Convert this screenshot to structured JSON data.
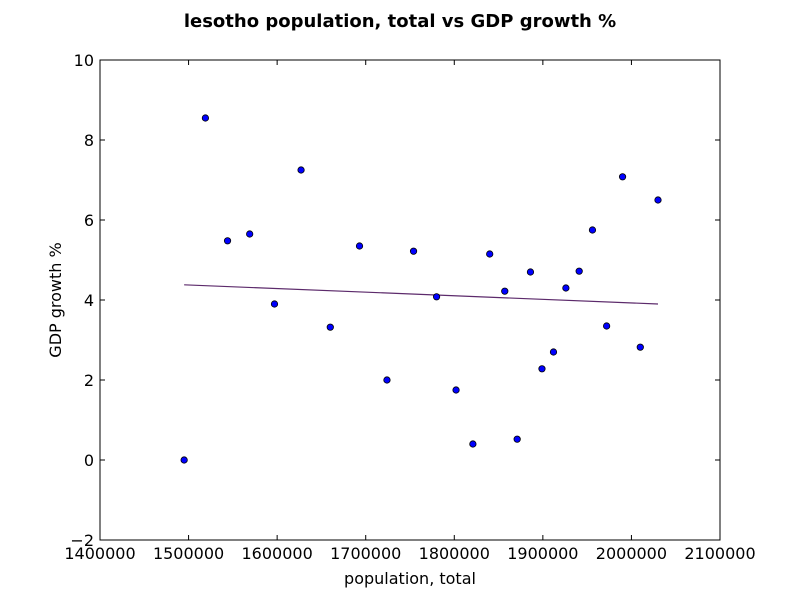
{
  "chart_data": {
    "type": "scatter",
    "title": "lesotho population, total vs GDP growth %",
    "xlabel": "population, total",
    "ylabel": "GDP growth %",
    "xlim": [
      1400000,
      2100000
    ],
    "ylim": [
      -2,
      10
    ],
    "xticks": [
      1400000,
      1500000,
      1600000,
      1700000,
      1800000,
      1900000,
      2000000,
      2100000
    ],
    "yticks": [
      -2,
      0,
      2,
      4,
      6,
      8,
      10
    ],
    "xtick_labels": [
      "1400000",
      "1500000",
      "1600000",
      "1700000",
      "1800000",
      "1900000",
      "2000000",
      "2100000"
    ],
    "ytick_labels": [
      "−2",
      "0",
      "2",
      "4",
      "6",
      "8",
      "10"
    ],
    "grid": false,
    "points": [
      {
        "x": 1495000,
        "y": 0.0
      },
      {
        "x": 1519000,
        "y": 8.55
      },
      {
        "x": 1544000,
        "y": 5.48
      },
      {
        "x": 1569000,
        "y": 5.65
      },
      {
        "x": 1597000,
        "y": 3.9
      },
      {
        "x": 1627000,
        "y": 7.25
      },
      {
        "x": 1660000,
        "y": 3.32
      },
      {
        "x": 1693000,
        "y": 5.35
      },
      {
        "x": 1724000,
        "y": 2.0
      },
      {
        "x": 1754000,
        "y": 5.22
      },
      {
        "x": 1780000,
        "y": 4.08
      },
      {
        "x": 1802000,
        "y": 1.75
      },
      {
        "x": 1821000,
        "y": 0.4
      },
      {
        "x": 1840000,
        "y": 5.15
      },
      {
        "x": 1857000,
        "y": 4.22
      },
      {
        "x": 1871000,
        "y": 0.52
      },
      {
        "x": 1886000,
        "y": 4.7
      },
      {
        "x": 1899000,
        "y": 2.28
      },
      {
        "x": 1912000,
        "y": 2.7
      },
      {
        "x": 1926000,
        "y": 4.3
      },
      {
        "x": 1941000,
        "y": 4.72
      },
      {
        "x": 1956000,
        "y": 5.75
      },
      {
        "x": 1972000,
        "y": 3.35
      },
      {
        "x": 1990000,
        "y": 7.08
      },
      {
        "x": 2010000,
        "y": 2.82
      },
      {
        "x": 2030000,
        "y": 6.5
      }
    ],
    "trendline": {
      "x": [
        1495000,
        2030000
      ],
      "y": [
        4.38,
        3.9
      ]
    },
    "colors": {
      "marker": "#0000ff",
      "marker_edge": "#000000",
      "trendline": "#5c2a6b"
    }
  }
}
